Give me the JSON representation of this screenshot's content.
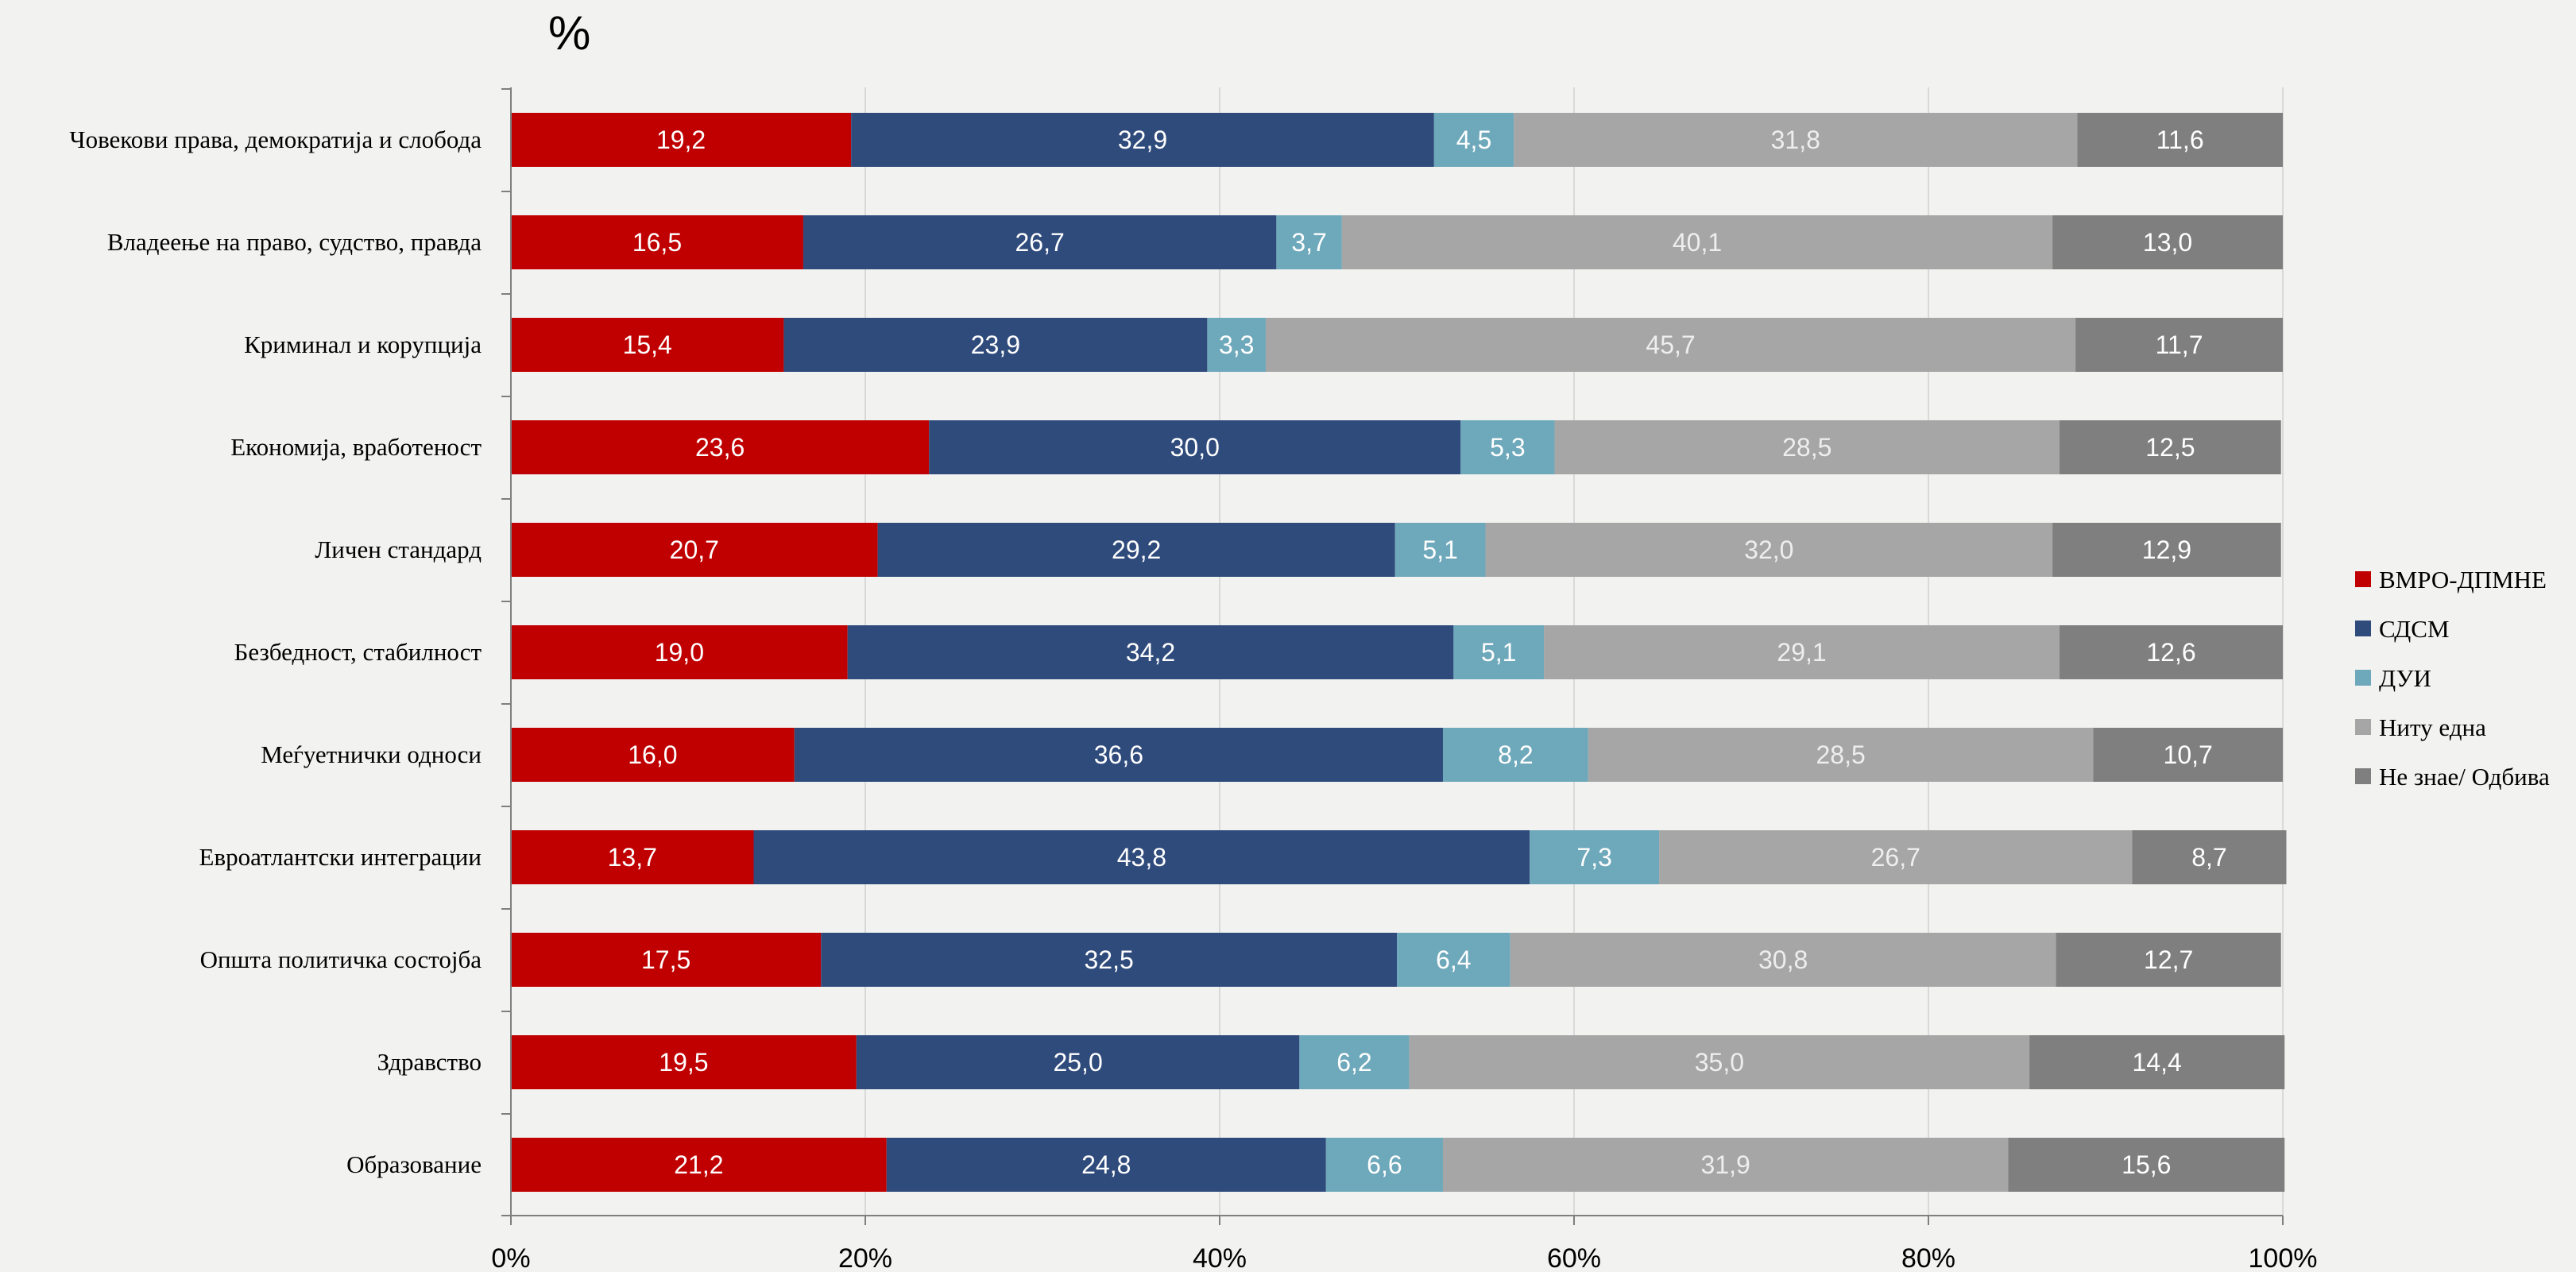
{
  "chart_data": {
    "type": "bar",
    "orientation": "horizontal",
    "stacked": "percent",
    "unit_label": "%",
    "categories": [
      "Човекови права,  демократија и слобода",
      "Владеење на право,  судство, правда",
      "Криминал  и корупција",
      "Економија,  вработеност",
      "Личен стандард",
      "Безбедност, стабилност",
      "Меѓуетнички  односи",
      "Евроатлантски  интеграции",
      "Општа  политичка  состојба",
      "Здравство",
      "Образование"
    ],
    "series": [
      {
        "name": "ВМРО-ДПМНЕ",
        "color": "#c00000",
        "label_color": "#ffffff",
        "values": [
          19.2,
          16.5,
          15.4,
          23.6,
          20.7,
          19.0,
          16.0,
          13.7,
          17.5,
          19.5,
          21.2
        ],
        "labels": [
          "19,2",
          "16,5",
          "15,4",
          "23,6",
          "20,7",
          "19,0",
          "16,0",
          "13,7",
          "17,5",
          "19,5",
          "21,2"
        ]
      },
      {
        "name": "СДСМ",
        "color": "#2f4b7c",
        "label_color": "#ffffff",
        "values": [
          32.9,
          26.7,
          23.9,
          30.0,
          29.2,
          34.2,
          36.6,
          43.8,
          32.5,
          25.0,
          24.8
        ],
        "labels": [
          "32,9",
          "26,7",
          "23,9",
          "30,0",
          "29,2",
          "34,2",
          "36,6",
          "43,8",
          "32,5",
          "25,0",
          "24,8"
        ]
      },
      {
        "name": "ДУИ",
        "color": "#6ea8bb",
        "label_color": "#ffffff",
        "values": [
          4.5,
          3.7,
          3.3,
          5.3,
          5.1,
          5.1,
          8.2,
          7.3,
          6.4,
          6.2,
          6.6
        ],
        "labels": [
          "4,5",
          "3,7",
          "3,3",
          "5,3",
          "5,1",
          "5,1",
          "8,2",
          "7,3",
          "6,4",
          "6,2",
          "6,6"
        ]
      },
      {
        "name": "Ниту  една",
        "color": "#a6a6a6",
        "label_color": "#eeeeee",
        "values": [
          31.8,
          40.1,
          45.7,
          28.5,
          32.0,
          29.1,
          28.5,
          26.7,
          30.8,
          35.0,
          31.9
        ],
        "labels": [
          "31,8",
          "40,1",
          "45,7",
          "28,5",
          "32,0",
          "29,1",
          "28,5",
          "26,7",
          "30,8",
          "35,0",
          "31,9"
        ]
      },
      {
        "name": "Не знае/ Одбива",
        "color": "#7f7f7f",
        "label_color": "#ffffff",
        "values": [
          11.6,
          13.0,
          11.7,
          12.5,
          12.9,
          12.6,
          10.7,
          8.7,
          12.7,
          14.4,
          15.6
        ],
        "labels": [
          "11,6",
          "13,0",
          "11,7",
          "12,5",
          "12,9",
          "12,6",
          "10,7",
          "8,7",
          "12,7",
          "14,4",
          "15,6"
        ]
      }
    ],
    "xlim": [
      0,
      100
    ],
    "x_ticks": [
      "0%",
      "20%",
      "40%",
      "60%",
      "80%",
      "100%"
    ],
    "grid": true,
    "legend_position": "right"
  }
}
